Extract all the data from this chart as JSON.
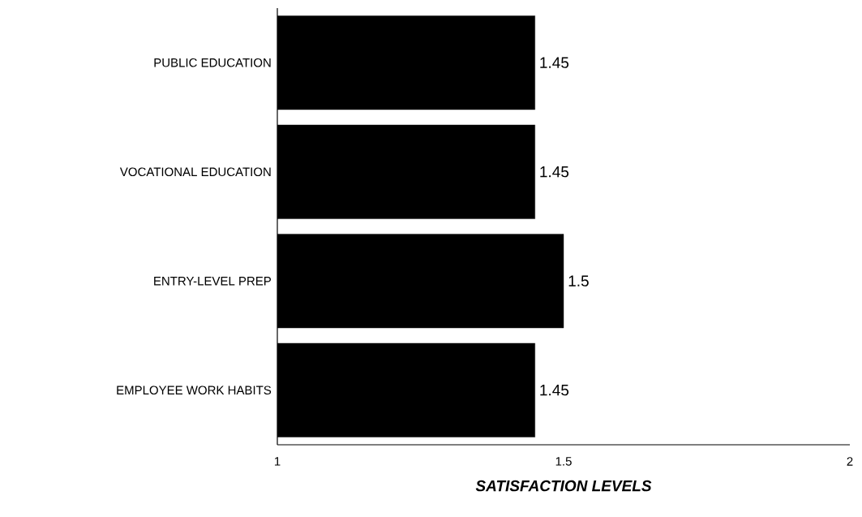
{
  "chart_data": {
    "type": "bar",
    "orientation": "horizontal",
    "xlabel": "SATISFACTION LEVELS",
    "categories": [
      "PUBLIC EDUCATION",
      "VOCATIONAL EDUCATION",
      "ENTRY-LEVEL PREP",
      "EMPLOYEE WORK HABITS"
    ],
    "values": [
      1.45,
      1.45,
      1.5,
      1.45
    ],
    "color": "#000000",
    "xlim": [
      1,
      2
    ],
    "xticks": [
      1,
      1.5,
      2
    ],
    "data_labels": true
  }
}
